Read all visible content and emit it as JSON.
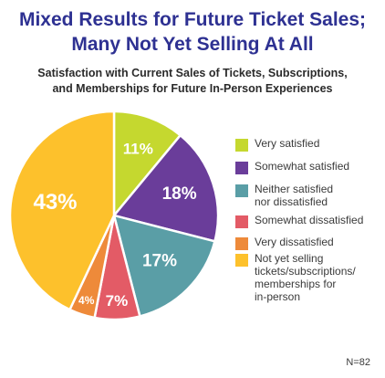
{
  "title_lines": [
    "Mixed Results for Future Ticket Sales;",
    "Many Not Yet Selling At All"
  ],
  "subtitle_lines": [
    "Satisfaction with Current Sales of Tickets, Subscriptions,",
    "and Memberships for Future In-Person Experiences"
  ],
  "note": "N=82",
  "chart_data": {
    "type": "pie",
    "title": "Mixed Results for Future Ticket Sales; Many Not Yet Selling At All",
    "subtitle": "Satisfaction with Current Sales of Tickets, Subscriptions, and Memberships for Future In-Person Experiences",
    "legend_position": "right",
    "slices": [
      {
        "label_lines": [
          "Very satisfied"
        ],
        "value": 11,
        "display": "11%",
        "color": "#c5d82f"
      },
      {
        "label_lines": [
          "Somewhat satisfied"
        ],
        "value": 18,
        "display": "18%",
        "color": "#6a3d9a"
      },
      {
        "label_lines": [
          "Neither satisfied",
          "nor dissatisfied"
        ],
        "value": 17,
        "display": "17%",
        "color": "#5a9ea6"
      },
      {
        "label_lines": [
          "Somewhat dissatisfied"
        ],
        "value": 7,
        "display": "7%",
        "color": "#e35b66"
      },
      {
        "label_lines": [
          "Very dissatisfied"
        ],
        "value": 4,
        "display": "4%",
        "color": "#ee8a3a"
      },
      {
        "label_lines": [
          "Not yet selling",
          "tickets/subscriptions/",
          "memberships for",
          "in-person"
        ],
        "value": 43,
        "display": "43%",
        "color": "#fdc12c"
      }
    ]
  }
}
